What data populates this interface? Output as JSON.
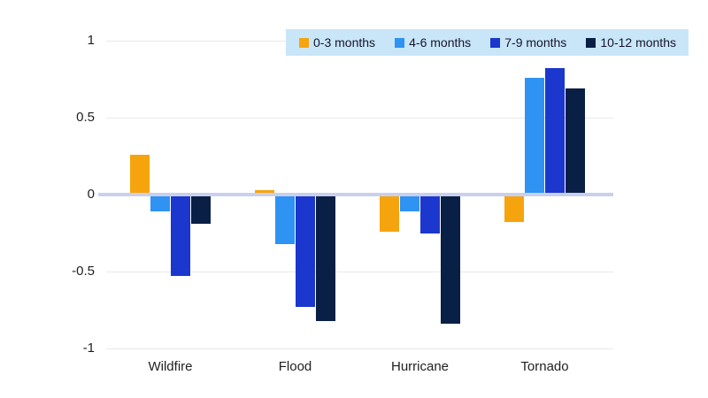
{
  "chart_data": {
    "type": "bar",
    "title": "",
    "xlabel": "",
    "ylabel": "",
    "categories": [
      "Wildfire",
      "Flood",
      "Hurricane",
      "Tornado"
    ],
    "series": [
      {
        "name": "0-3 months",
        "color": "#f6a40e",
        "values": [
          0.26,
          0.03,
          -0.24,
          -0.18
        ]
      },
      {
        "name": "4-6 months",
        "color": "#2e93f2",
        "values": [
          -0.11,
          -0.32,
          -0.11,
          0.76
        ]
      },
      {
        "name": "7-9 months",
        "color": "#1b37ce",
        "values": [
          -0.53,
          -0.73,
          -0.25,
          0.82
        ]
      },
      {
        "name": "10-12 months",
        "color": "#0a1f45",
        "values": [
          -0.19,
          -0.82,
          -0.84,
          0.69
        ]
      }
    ],
    "ylim": [
      -1,
      1
    ],
    "yticks": [
      {
        "value": 1,
        "label": "1"
      },
      {
        "value": 0.5,
        "label": "0.5"
      },
      {
        "value": 0,
        "label": "0"
      },
      {
        "value": -0.5,
        "label": "-0.5"
      },
      {
        "value": -1,
        "label": "-1"
      }
    ],
    "grid": true,
    "legend_position": "top-right",
    "colors": {
      "background": "#ffffff",
      "legend_background": "#c9e6f8",
      "gridline": "#e9e9e9",
      "zero_line": "#c9cfef",
      "text": "#1f1f1f"
    }
  }
}
